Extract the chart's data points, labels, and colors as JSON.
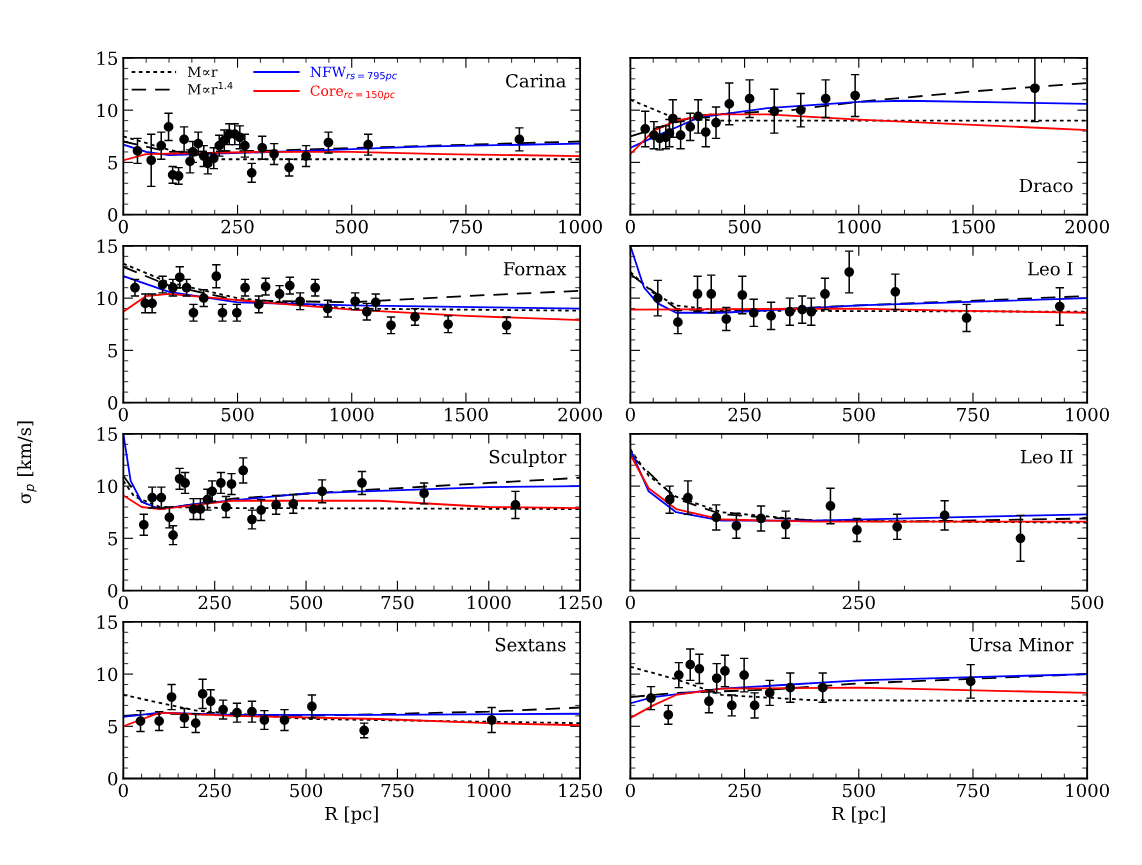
{
  "chart_data": [
    {
      "type": "scatter",
      "title": "Carina",
      "xlim": [
        0,
        1000
      ],
      "ylim": [
        0,
        15
      ],
      "xticks": [
        0,
        250,
        500,
        750,
        1000
      ],
      "yticks": [
        0,
        5,
        10,
        15
      ],
      "legend": "top left",
      "series": [
        {
          "name": "M∝r",
          "type": "line",
          "line_style": "dotted",
          "color": "#000000",
          "x": [
            0,
            100,
            200,
            400,
            1000
          ],
          "values": [
            7.5,
            6.2,
            5.3,
            5.3,
            5.3
          ]
        },
        {
          "name": "M∝r$^{1.4}$",
          "type": "line",
          "line_style": "dashed",
          "color": "#000000",
          "x": [
            0,
            100,
            300,
            600,
            1000
          ],
          "values": [
            7.0,
            6.0,
            6.1,
            6.5,
            7.0
          ]
        },
        {
          "name": "NFW$_{rs=795pc}$",
          "type": "line",
          "line_style": "solid",
          "color": "#0000ff",
          "x": [
            0,
            50,
            100,
            400,
            650,
            1000
          ],
          "values": [
            6.7,
            6.0,
            5.7,
            6.1,
            6.5,
            6.8
          ]
        },
        {
          "name": "Core$_{rc=150pc}$",
          "type": "line",
          "line_style": "solid",
          "color": "#ff0000",
          "x": [
            0,
            50,
            300,
            500,
            700,
            1000
          ],
          "values": [
            5.2,
            5.8,
            6.0,
            6.0,
            5.8,
            5.6
          ]
        },
        {
          "marker": "circle",
          "color": "#000000",
          "x": [
            31,
            61,
            83,
            99,
            108,
            121,
            133,
            146,
            152,
            164,
            176,
            185,
            198,
            210,
            221,
            232,
            244,
            255,
            266,
            281,
            304,
            330,
            363,
            400,
            449,
            536,
            867
          ],
          "values": [
            6.1,
            5.2,
            6.6,
            8.4,
            3.8,
            3.7,
            7.2,
            5.1,
            6.0,
            6.8,
            5.6,
            4.9,
            5.4,
            6.6,
            7.1,
            7.7,
            7.7,
            7.4,
            6.6,
            4.0,
            6.4,
            5.8,
            4.5,
            5.6,
            6.9,
            6.7,
            7.2
          ],
          "errors": [
            1.2,
            2.5,
            1.3,
            1.3,
            0.8,
            0.8,
            1.2,
            1.1,
            1.0,
            1.1,
            1.0,
            1.0,
            1.0,
            1.0,
            1.0,
            1.0,
            1.0,
            1.1,
            1.1,
            0.9,
            1.1,
            1.0,
            0.8,
            1.0,
            1.0,
            1.0,
            1.1
          ]
        }
      ]
    },
    {
      "type": "scatter",
      "title": "Draco",
      "xlim": [
        0,
        2000
      ],
      "ylim": [
        0,
        15
      ],
      "xticks": [
        0,
        500,
        1000,
        1500,
        2000
      ],
      "yticks": [
        0,
        5,
        10,
        15
      ],
      "tick_labels": "x",
      "series": [
        {
          "type": "line",
          "line_style": "dotted",
          "color": "#000000",
          "x": [
            0,
            200,
            400,
            2000
          ],
          "values": [
            11.0,
            9.2,
            9.0,
            9.0
          ]
        },
        {
          "type": "line",
          "line_style": "dashed",
          "color": "#000000",
          "x": [
            0,
            300,
            700,
            1000,
            1500,
            2000
          ],
          "values": [
            7.5,
            9.5,
            10.0,
            10.8,
            11.8,
            12.6
          ]
        },
        {
          "type": "line",
          "line_style": "solid",
          "color": "#0000ff",
          "x": [
            0,
            100,
            300,
            600,
            1000,
            1200,
            2000
          ],
          "values": [
            6.4,
            7.4,
            9.3,
            10.2,
            10.8,
            10.9,
            10.6
          ]
        },
        {
          "type": "line",
          "line_style": "solid",
          "color": "#ff0000",
          "x": [
            0,
            100,
            200,
            350,
            600,
            1000,
            1500,
            2000
          ],
          "values": [
            5.8,
            8.0,
            9.0,
            9.6,
            9.6,
            9.1,
            8.6,
            8.1
          ]
        },
        {
          "marker": "circle",
          "color": "#000000",
          "x": [
            65,
            103,
            128,
            155,
            171,
            186,
            220,
            262,
            297,
            330,
            375,
            433,
            522,
            630,
            746,
            855,
            984,
            1771
          ],
          "values": [
            8.2,
            7.6,
            7.3,
            7.4,
            7.8,
            9.2,
            7.6,
            8.4,
            9.4,
            7.9,
            8.8,
            10.6,
            11.1,
            9.9,
            10.0,
            11.1,
            11.4,
            12.1
          ],
          "errors": [
            1.7,
            1.3,
            1.1,
            1.1,
            1.3,
            1.8,
            1.3,
            1.3,
            1.6,
            1.4,
            1.5,
            2.0,
            1.8,
            2.1,
            1.6,
            1.8,
            2.0,
            3.2
          ]
        }
      ]
    },
    {
      "type": "scatter",
      "title": "Fornax",
      "xlim": [
        0,
        2000
      ],
      "ylim": [
        0,
        15
      ],
      "xticks": [
        0,
        500,
        1000,
        1500,
        2000
      ],
      "yticks": [
        0,
        5,
        10,
        15
      ],
      "series": [
        {
          "type": "line",
          "line_style": "dotted",
          "color": "#000000",
          "x": [
            0,
            200,
            500,
            1000,
            2000
          ],
          "values": [
            13.3,
            11.5,
            10.0,
            9.0,
            8.8
          ]
        },
        {
          "type": "line",
          "line_style": "dashed",
          "color": "#000000",
          "x": [
            0,
            200,
            500,
            1000,
            1500,
            2000
          ],
          "values": [
            13.0,
            11.2,
            9.8,
            9.6,
            10.2,
            10.7
          ]
        },
        {
          "type": "line",
          "line_style": "solid",
          "color": "#0000ff",
          "x": [
            0,
            200,
            500,
            1000,
            2000
          ],
          "values": [
            12.1,
            10.6,
            9.6,
            9.3,
            9.0
          ]
        },
        {
          "type": "line",
          "line_style": "solid",
          "color": "#ff0000",
          "x": [
            0,
            100,
            200,
            500,
            1000,
            1500,
            2000
          ],
          "values": [
            8.7,
            10.2,
            10.4,
            9.8,
            8.9,
            8.3,
            7.9
          ]
        },
        {
          "marker": "circle",
          "color": "#000000",
          "x": [
            51,
            96,
            126,
            172,
            217,
            247,
            277,
            307,
            352,
            407,
            434,
            497,
            533,
            593,
            623,
            684,
            729,
            774,
            840,
            895,
            1015,
            1066,
            1105,
            1172,
            1277,
            1422,
            1678
          ],
          "values": [
            11.0,
            9.5,
            9.5,
            11.3,
            11.0,
            12.0,
            11.0,
            8.6,
            10.0,
            12.1,
            8.6,
            8.6,
            11.0,
            9.4,
            11.1,
            10.4,
            11.2,
            9.7,
            11.0,
            9.0,
            9.7,
            8.7,
            9.6,
            7.4,
            8.2,
            7.5,
            7.4
          ],
          "errors": [
            0.8,
            0.9,
            0.9,
            0.8,
            0.8,
            1.0,
            0.8,
            0.8,
            0.8,
            1.1,
            0.8,
            0.8,
            0.8,
            0.8,
            0.8,
            0.8,
            0.8,
            0.8,
            0.8,
            0.8,
            0.8,
            0.8,
            0.8,
            0.8,
            0.8,
            0.8,
            0.8
          ]
        }
      ]
    },
    {
      "type": "scatter",
      "title": "Leo I",
      "xlim": [
        0,
        1000
      ],
      "ylim": [
        0,
        15
      ],
      "xticks": [
        0,
        250,
        500,
        750,
        1000
      ],
      "yticks": [
        0,
        5,
        10,
        15
      ],
      "tick_labels": "x",
      "series": [
        {
          "type": "line",
          "line_style": "dotted",
          "color": "#000000",
          "x": [
            0,
            50,
            100,
            200,
            1000
          ],
          "values": [
            12.5,
            10.5,
            9.3,
            8.8,
            8.7
          ]
        },
        {
          "type": "line",
          "line_style": "dashed",
          "color": "#000000",
          "x": [
            0,
            100,
            200,
            500,
            1000
          ],
          "values": [
            12.3,
            9.0,
            8.7,
            9.3,
            10.2
          ]
        },
        {
          "type": "line",
          "line_style": "solid",
          "color": "#0000ff",
          "x": [
            0,
            30,
            60,
            100,
            200,
            500,
            1000
          ],
          "values": [
            15.0,
            11.0,
            9.5,
            8.6,
            8.6,
            9.3,
            10.0
          ]
        },
        {
          "type": "line",
          "line_style": "solid",
          "color": "#ff0000",
          "x": [
            0,
            500,
            700,
            1000
          ],
          "values": [
            8.9,
            9.0,
            8.8,
            8.6
          ]
        },
        {
          "marker": "circle",
          "color": "#000000",
          "x": [
            60,
            104,
            147,
            177,
            210,
            245,
            270,
            308,
            349,
            376,
            396,
            426,
            479,
            580,
            736,
            940
          ],
          "values": [
            10.0,
            7.7,
            10.4,
            10.4,
            8.0,
            10.3,
            8.6,
            8.3,
            8.7,
            8.9,
            8.7,
            10.4,
            12.5,
            10.6,
            8.1,
            9.2
          ],
          "errors": [
            1.7,
            1.1,
            1.7,
            1.8,
            1.1,
            1.8,
            1.3,
            1.3,
            1.3,
            1.3,
            1.3,
            1.5,
            2.0,
            1.7,
            1.3,
            1.8
          ]
        }
      ]
    },
    {
      "type": "scatter",
      "title": "Sculptor",
      "ylabel": "σ$_{p}$ [km/s]",
      "xlim": [
        0,
        1250
      ],
      "ylim": [
        0,
        15
      ],
      "xticks": [
        0,
        250,
        500,
        750,
        1000,
        1250
      ],
      "yticks": [
        0,
        5,
        10,
        15
      ],
      "series": [
        {
          "type": "line",
          "line_style": "dotted",
          "color": "#000000",
          "x": [
            0,
            30,
            100,
            300,
            1250
          ],
          "values": [
            10.5,
            9.0,
            8.0,
            7.9,
            7.8
          ]
        },
        {
          "type": "line",
          "line_style": "dashed",
          "color": "#000000",
          "x": [
            0,
            50,
            100,
            300,
            600,
            1000,
            1250
          ],
          "values": [
            11.0,
            8.5,
            7.8,
            8.8,
            9.5,
            10.3,
            10.8
          ]
        },
        {
          "type": "line",
          "line_style": "solid",
          "color": "#0000ff",
          "x": [
            0,
            20,
            50,
            100,
            200,
            500,
            1000,
            1250
          ],
          "values": [
            15.0,
            10.5,
            8.5,
            7.8,
            8.3,
            9.3,
            9.9,
            10.0
          ]
        },
        {
          "type": "line",
          "line_style": "solid",
          "color": "#ff0000",
          "x": [
            0,
            50,
            100,
            300,
            700,
            1000,
            1250
          ],
          "values": [
            9.1,
            8.0,
            7.8,
            8.6,
            8.6,
            8.0,
            7.9
          ]
        },
        {
          "marker": "circle",
          "color": "#000000",
          "x": [
            56,
            79,
            104,
            126,
            136,
            154,
            169,
            192,
            211,
            230,
            243,
            267,
            281,
            296,
            328,
            352,
            377,
            418,
            465,
            544,
            653,
            823,
            1073
          ],
          "values": [
            6.3,
            8.9,
            8.9,
            7.0,
            5.3,
            10.7,
            10.3,
            7.8,
            7.8,
            8.7,
            9.5,
            10.3,
            8.0,
            10.2,
            11.5,
            6.8,
            7.7,
            8.2,
            8.3,
            9.5,
            10.3,
            9.3,
            8.2
          ],
          "errors": [
            1.0,
            1.0,
            1.0,
            1.0,
            0.9,
            1.0,
            1.0,
            1.0,
            1.0,
            1.0,
            1.0,
            1.0,
            1.0,
            1.0,
            1.2,
            0.9,
            1.0,
            0.9,
            0.9,
            1.1,
            1.1,
            1.0,
            1.3
          ]
        }
      ]
    },
    {
      "type": "scatter",
      "title": "Leo II",
      "xlim": [
        0,
        500
      ],
      "ylim": [
        0,
        15
      ],
      "xticks": [
        0,
        250,
        500
      ],
      "yticks": [
        0,
        5,
        10,
        15
      ],
      "tick_labels": "x",
      "series": [
        {
          "type": "line",
          "line_style": "dotted",
          "color": "#000000",
          "x": [
            0,
            20,
            50,
            100,
            200,
            500
          ],
          "values": [
            13.5,
            11.0,
            9.0,
            7.5,
            6.7,
            6.5
          ]
        },
        {
          "type": "line",
          "line_style": "dashed",
          "color": "#000000",
          "x": [
            0,
            50,
            100,
            200,
            300,
            500
          ],
          "values": [
            13.0,
            8.8,
            7.3,
            6.7,
            6.6,
            6.9
          ]
        },
        {
          "type": "line",
          "line_style": "solid",
          "color": "#0000ff",
          "x": [
            0,
            20,
            50,
            100,
            200,
            350,
            500
          ],
          "values": [
            13.5,
            9.5,
            7.5,
            6.7,
            6.7,
            7.0,
            7.3
          ]
        },
        {
          "type": "line",
          "line_style": "solid",
          "color": "#ff0000",
          "x": [
            0,
            20,
            50,
            100,
            200,
            500
          ],
          "values": [
            13.0,
            9.8,
            7.8,
            6.8,
            6.6,
            6.6
          ]
        },
        {
          "marker": "circle",
          "color": "#000000",
          "x": [
            43,
            63,
            94,
            116,
            143,
            170,
            219,
            248,
            292,
            344,
            427
          ],
          "values": [
            8.7,
            8.9,
            7.0,
            6.2,
            6.9,
            6.3,
            8.1,
            5.8,
            6.1,
            7.2,
            5.0
          ],
          "errors": [
            1.3,
            1.6,
            1.2,
            1.2,
            1.2,
            1.3,
            1.7,
            1.1,
            1.2,
            1.4,
            2.2
          ]
        }
      ]
    },
    {
      "type": "scatter",
      "title": "Sextans",
      "xlabel": "R [pc]",
      "xlim": [
        0,
        1250
      ],
      "ylim": [
        0,
        15
      ],
      "xticks": [
        0,
        250,
        500,
        750,
        1000,
        1250
      ],
      "yticks": [
        0,
        5,
        10,
        15
      ],
      "series": [
        {
          "type": "line",
          "line_style": "dotted",
          "color": "#000000",
          "x": [
            0,
            200,
            500,
            1250
          ],
          "values": [
            8.0,
            6.5,
            5.7,
            5.3
          ]
        },
        {
          "type": "line",
          "line_style": "dashed",
          "color": "#000000",
          "x": [
            0,
            100,
            500,
            1000,
            1250
          ],
          "values": [
            6.0,
            6.2,
            6.0,
            6.4,
            6.8
          ]
        },
        {
          "type": "line",
          "line_style": "solid",
          "color": "#0000ff",
          "x": [
            0,
            100,
            300,
            700,
            1250
          ],
          "values": [
            5.9,
            6.3,
            6.1,
            6.1,
            6.2
          ]
        },
        {
          "type": "line",
          "line_style": "solid",
          "color": "#ff0000",
          "x": [
            0,
            100,
            300,
            700,
            1000,
            1250
          ],
          "values": [
            5.0,
            6.3,
            6.0,
            5.7,
            5.3,
            5.1
          ]
        },
        {
          "marker": "circle",
          "color": "#000000",
          "x": [
            47,
            98,
            132,
            167,
            198,
            217,
            239,
            273,
            311,
            352,
            386,
            441,
            516,
            659,
            1008
          ],
          "values": [
            5.5,
            5.5,
            7.8,
            5.8,
            5.3,
            8.1,
            7.4,
            6.6,
            6.3,
            6.4,
            5.6,
            5.6,
            6.9,
            4.6,
            5.6
          ],
          "errors": [
            1.0,
            0.9,
            1.2,
            0.9,
            0.9,
            1.4,
            1.1,
            0.9,
            0.9,
            1.0,
            0.9,
            1.0,
            1.1,
            0.7,
            1.2
          ]
        }
      ]
    },
    {
      "type": "scatter",
      "title": "Ursa Minor",
      "xlabel": "R [pc]",
      "xlim": [
        0,
        1000
      ],
      "ylim": [
        0,
        15
      ],
      "xticks": [
        0,
        250,
        500,
        750,
        1000
      ],
      "yticks": [
        0,
        5,
        10,
        15
      ],
      "tick_labels": "x",
      "series": [
        {
          "type": "line",
          "line_style": "dotted",
          "color": "#000000",
          "x": [
            0,
            100,
            200,
            400,
            1000
          ],
          "values": [
            10.7,
            9.5,
            8.0,
            7.5,
            7.4
          ]
        },
        {
          "type": "line",
          "line_style": "dashed",
          "color": "#000000",
          "x": [
            0,
            100,
            300,
            500,
            1000
          ],
          "values": [
            7.8,
            8.2,
            8.5,
            9.1,
            10.0
          ]
        },
        {
          "type": "line",
          "line_style": "solid",
          "color": "#0000ff",
          "x": [
            0,
            50,
            200,
            500,
            1000
          ],
          "values": [
            7.2,
            7.8,
            8.6,
            9.4,
            10.0
          ]
        },
        {
          "type": "line",
          "line_style": "solid",
          "color": "#ff0000",
          "x": [
            0,
            50,
            100,
            200,
            500,
            1000
          ],
          "values": [
            5.8,
            7.0,
            8.0,
            8.6,
            8.7,
            8.2
          ]
        },
        {
          "marker": "circle",
          "color": "#000000",
          "x": [
            45,
            83,
            106,
            131,
            151,
            172,
            189,
            207,
            222,
            249,
            272,
            305,
            350,
            421,
            745
          ],
          "values": [
            7.7,
            6.1,
            9.9,
            10.9,
            10.5,
            7.4,
            9.6,
            10.3,
            7.0,
            9.9,
            7.0,
            8.2,
            8.7,
            8.7,
            9.3
          ],
          "errors": [
            1.1,
            0.9,
            1.2,
            1.5,
            1.4,
            1.1,
            1.4,
            1.5,
            1.0,
            1.6,
            1.2,
            1.2,
            1.4,
            1.4,
            1.6
          ]
        }
      ]
    }
  ]
}
